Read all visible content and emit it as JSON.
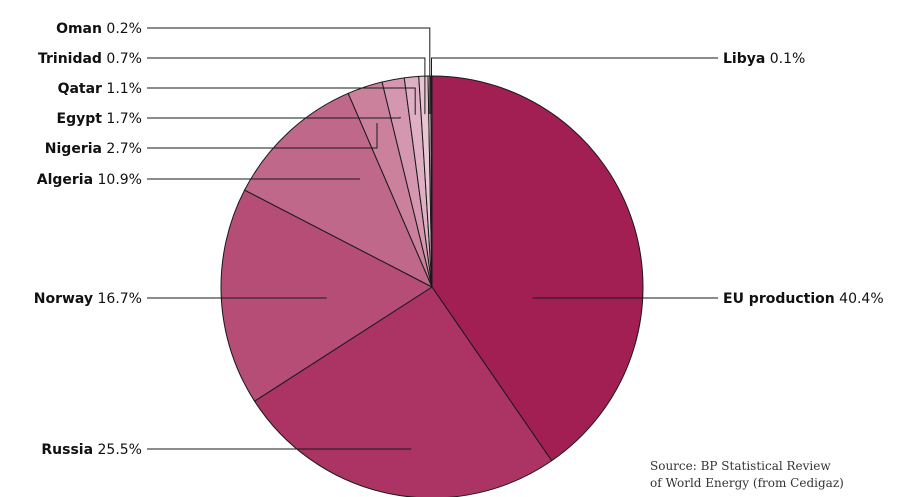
{
  "chart_data": {
    "type": "pie",
    "start_angle_deg": 0,
    "direction": "clockwise",
    "slices": [
      {
        "label": "EU production",
        "value": 40.4,
        "color": "#a21f54",
        "label_side": "right"
      },
      {
        "label": "Russia",
        "value": 25.5,
        "color": "#ab3465",
        "label_side": "left"
      },
      {
        "label": "Norway",
        "value": 16.7,
        "color": "#b54d77",
        "label_side": "left"
      },
      {
        "label": "Algeria",
        "value": 10.9,
        "color": "#c06889",
        "label_side": "left"
      },
      {
        "label": "Nigeria",
        "value": 2.7,
        "color": "#cb809c",
        "label_side": "left"
      },
      {
        "label": "Egypt",
        "value": 1.7,
        "color": "#d597b0",
        "label_side": "left"
      },
      {
        "label": "Qatar",
        "value": 1.1,
        "color": "#dfafc3",
        "label_side": "left"
      },
      {
        "label": "Trinidad",
        "value": 0.7,
        "color": "#e8c5d3",
        "label_side": "left"
      },
      {
        "label": "Oman",
        "value": 0.2,
        "color": "#efd6e0",
        "label_side": "left"
      },
      {
        "label": "Libya",
        "value": 0.1,
        "color": "#f3e0e8",
        "label_side": "right"
      }
    ],
    "value_suffix": "%"
  },
  "source": {
    "line1": "Source: BP Statistical Review",
    "line2": "of World Energy (from Cedigaz)"
  }
}
